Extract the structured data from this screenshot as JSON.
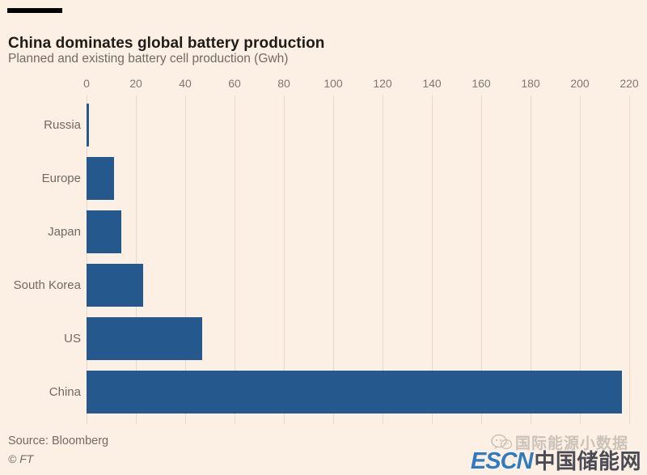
{
  "header": {
    "title": "China dominates global battery production",
    "subtitle": "Planned and existing battery cell production (Gwh)"
  },
  "footer": {
    "source": "Source: Bloomberg",
    "copyright": "© FT"
  },
  "watermark": {
    "wechat_label": "国际能源小数据",
    "brand_latin": "ESCN",
    "brand_cn": "中国储能网"
  },
  "colors": {
    "background": "#FCF0E4",
    "bar": "#25588C",
    "grid": "#E7DACB",
    "title": "#1F1B16",
    "muted": "#716A63",
    "tick": "#7F7872",
    "brand_blue": "#2E7CBF",
    "brand_dark": "#4A4B55",
    "watermark_gray": "#CBC2B7"
  },
  "chart_data": {
    "type": "bar",
    "orientation": "horizontal",
    "title": "China dominates global battery production",
    "subtitle": "Planned and existing battery cell production (Gwh)",
    "categories": [
      "Russia",
      "Europe",
      "Japan",
      "South Korea",
      "US",
      "China"
    ],
    "values": [
      1,
      11,
      14,
      23,
      47,
      217
    ],
    "xlabel": "",
    "ylabel": "",
    "xlim": [
      0,
      220
    ],
    "xticks": [
      0,
      20,
      40,
      60,
      80,
      100,
      120,
      140,
      160,
      180,
      200,
      220
    ],
    "grid": true,
    "axis_position": "top",
    "source": "Bloomberg"
  }
}
